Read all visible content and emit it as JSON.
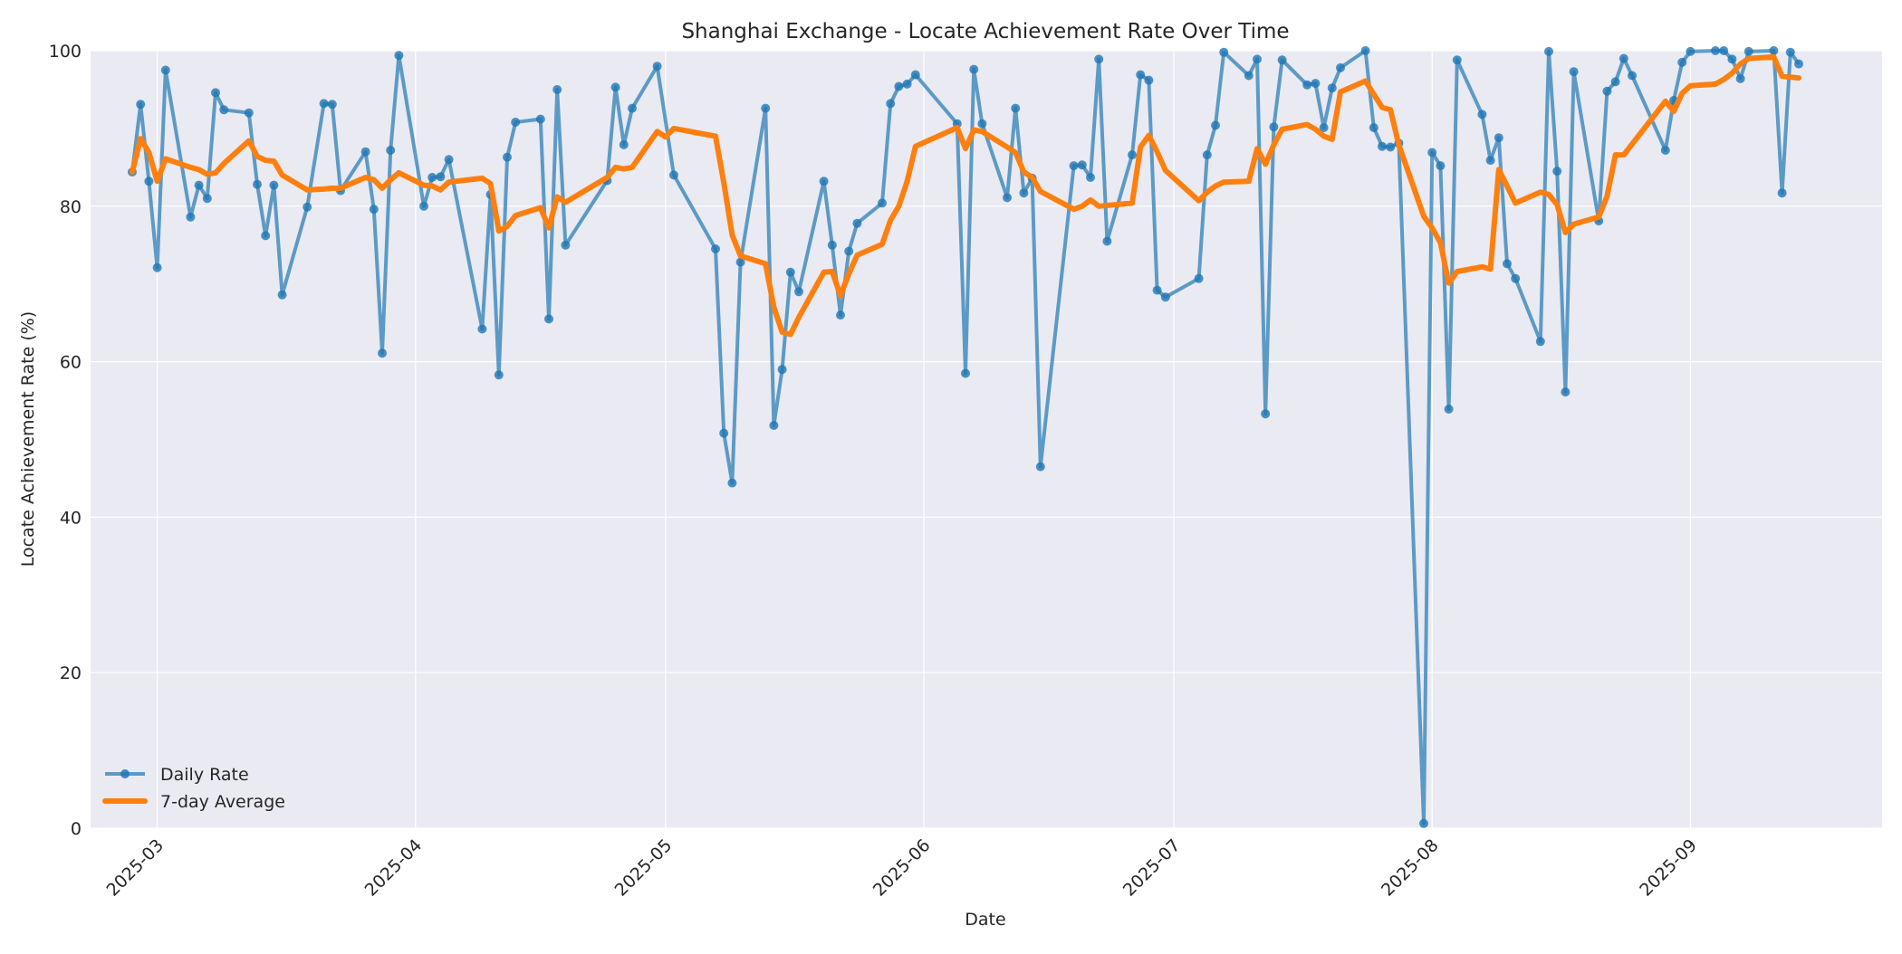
{
  "chart_data": {
    "type": "line",
    "title": "Shanghai Exchange - Locate Achievement Rate Over Time",
    "xlabel": "Date",
    "ylabel": "Locate Achievement Rate (%)",
    "ylim": [
      0,
      100
    ],
    "yticks": [
      0,
      20,
      40,
      60,
      80,
      100
    ],
    "xticks": [
      "2025-03",
      "2025-04",
      "2025-05",
      "2025-06",
      "2025-07",
      "2025-08",
      "2025-09"
    ],
    "xrange": [
      "2025-02-21",
      "2025-09-24"
    ],
    "grid": true,
    "legend_position": "lower left",
    "colors": {
      "daily": "#1f77b4",
      "avg": "#ff7f0e",
      "plot_bg": "#eaeaf2",
      "grid": "#ffffff"
    },
    "series": [
      {
        "name": "Daily Rate",
        "style": "line+marker",
        "points": [
          [
            "2025-02-26",
            84.4
          ],
          [
            "2025-02-27",
            93.1
          ],
          [
            "2025-02-28",
            83.2
          ],
          [
            "2025-03-01",
            72.1
          ],
          [
            "2025-03-02",
            97.5
          ],
          [
            "2025-03-05",
            78.6
          ],
          [
            "2025-03-06",
            82.7
          ],
          [
            "2025-03-07",
            81.0
          ],
          [
            "2025-03-08",
            94.6
          ],
          [
            "2025-03-09",
            92.4
          ],
          [
            "2025-03-12",
            92.0
          ],
          [
            "2025-03-13",
            82.8
          ],
          [
            "2025-03-14",
            76.2
          ],
          [
            "2025-03-15",
            82.7
          ],
          [
            "2025-03-16",
            68.6
          ],
          [
            "2025-03-19",
            79.9
          ],
          [
            "2025-03-21",
            93.2
          ],
          [
            "2025-03-22",
            93.1
          ],
          [
            "2025-03-23",
            82.0
          ],
          [
            "2025-03-26",
            87.0
          ],
          [
            "2025-03-27",
            79.6
          ],
          [
            "2025-03-28",
            61.1
          ],
          [
            "2025-03-29",
            87.2
          ],
          [
            "2025-03-30",
            99.4
          ],
          [
            "2025-04-02",
            80.0
          ],
          [
            "2025-04-03",
            83.7
          ],
          [
            "2025-04-04",
            83.8
          ],
          [
            "2025-04-05",
            86.0
          ],
          [
            "2025-04-09",
            64.2
          ],
          [
            "2025-04-10",
            81.5
          ],
          [
            "2025-04-11",
            58.3
          ],
          [
            "2025-04-12",
            86.3
          ],
          [
            "2025-04-13",
            90.8
          ],
          [
            "2025-04-16",
            91.2
          ],
          [
            "2025-04-17",
            65.5
          ],
          [
            "2025-04-18",
            95.0
          ],
          [
            "2025-04-19",
            75.0
          ],
          [
            "2025-04-24",
            83.3
          ],
          [
            "2025-04-25",
            95.3
          ],
          [
            "2025-04-26",
            87.9
          ],
          [
            "2025-04-27",
            92.6
          ],
          [
            "2025-04-30",
            98.0
          ],
          [
            "2025-05-02",
            84.0
          ],
          [
            "2025-05-07",
            74.5
          ],
          [
            "2025-05-08",
            50.8
          ],
          [
            "2025-05-09",
            44.4
          ],
          [
            "2025-05-10",
            72.8
          ],
          [
            "2025-05-13",
            92.6
          ],
          [
            "2025-05-14",
            51.8
          ],
          [
            "2025-05-15",
            59.0
          ],
          [
            "2025-05-16",
            71.5
          ],
          [
            "2025-05-17",
            69.0
          ],
          [
            "2025-05-20",
            83.2
          ],
          [
            "2025-05-21",
            75.0
          ],
          [
            "2025-05-22",
            66.0
          ],
          [
            "2025-05-23",
            74.2
          ],
          [
            "2025-05-24",
            77.8
          ],
          [
            "2025-05-27",
            80.4
          ],
          [
            "2025-05-28",
            93.2
          ],
          [
            "2025-05-29",
            95.4
          ],
          [
            "2025-05-30",
            95.7
          ],
          [
            "2025-05-31",
            96.9
          ],
          [
            "2025-06-05",
            90.6
          ],
          [
            "2025-06-06",
            58.5
          ],
          [
            "2025-06-07",
            97.6
          ],
          [
            "2025-06-08",
            90.6
          ],
          [
            "2025-06-11",
            81.1
          ],
          [
            "2025-06-12",
            92.6
          ],
          [
            "2025-06-13",
            81.7
          ],
          [
            "2025-06-14",
            83.6
          ],
          [
            "2025-06-15",
            46.5
          ],
          [
            "2025-06-19",
            85.2
          ],
          [
            "2025-06-20",
            85.3
          ],
          [
            "2025-06-21",
            83.7
          ],
          [
            "2025-06-22",
            98.9
          ],
          [
            "2025-06-23",
            75.5
          ],
          [
            "2025-06-26",
            86.6
          ],
          [
            "2025-06-27",
            96.9
          ],
          [
            "2025-06-28",
            96.2
          ],
          [
            "2025-06-29",
            69.2
          ],
          [
            "2025-06-30",
            68.3
          ],
          [
            "2025-07-04",
            70.7
          ],
          [
            "2025-07-05",
            86.6
          ],
          [
            "2025-07-06",
            90.4
          ],
          [
            "2025-07-07",
            99.8
          ],
          [
            "2025-07-10",
            96.8
          ],
          [
            "2025-07-11",
            98.9
          ],
          [
            "2025-07-12",
            53.3
          ],
          [
            "2025-07-13",
            90.2
          ],
          [
            "2025-07-14",
            98.8
          ],
          [
            "2025-07-17",
            95.6
          ],
          [
            "2025-07-18",
            95.8
          ],
          [
            "2025-07-19",
            90.1
          ],
          [
            "2025-07-20",
            95.2
          ],
          [
            "2025-07-21",
            97.8
          ],
          [
            "2025-07-24",
            100.0
          ],
          [
            "2025-07-25",
            90.1
          ],
          [
            "2025-07-26",
            87.7
          ],
          [
            "2025-07-27",
            87.6
          ],
          [
            "2025-07-28",
            88.1
          ],
          [
            "2025-07-31",
            0.6
          ],
          [
            "2025-08-01",
            86.9
          ],
          [
            "2025-08-02",
            85.2
          ],
          [
            "2025-08-03",
            53.9
          ],
          [
            "2025-08-04",
            98.8
          ],
          [
            "2025-08-07",
            91.8
          ],
          [
            "2025-08-08",
            85.9
          ],
          [
            "2025-08-09",
            88.8
          ],
          [
            "2025-08-10",
            72.6
          ],
          [
            "2025-08-11",
            70.7
          ],
          [
            "2025-08-14",
            62.6
          ],
          [
            "2025-08-15",
            99.9
          ],
          [
            "2025-08-16",
            84.5
          ],
          [
            "2025-08-17",
            56.1
          ],
          [
            "2025-08-18",
            97.3
          ],
          [
            "2025-08-21",
            78.1
          ],
          [
            "2025-08-22",
            94.8
          ],
          [
            "2025-08-23",
            96.0
          ],
          [
            "2025-08-24",
            99.0
          ],
          [
            "2025-08-25",
            96.8
          ],
          [
            "2025-08-29",
            87.2
          ],
          [
            "2025-08-30",
            93.6
          ],
          [
            "2025-08-31",
            98.5
          ],
          [
            "2025-09-01",
            99.9
          ],
          [
            "2025-09-04",
            100.0
          ],
          [
            "2025-09-05",
            100.0
          ],
          [
            "2025-09-06",
            98.9
          ],
          [
            "2025-09-07",
            96.4
          ],
          [
            "2025-09-08",
            99.9
          ],
          [
            "2025-09-11",
            100.0
          ],
          [
            "2025-09-12",
            81.7
          ],
          [
            "2025-09-13",
            99.8
          ],
          [
            "2025-09-14",
            98.3
          ]
        ]
      },
      {
        "name": "7-day Average",
        "style": "line",
        "points": [
          [
            "2025-02-26",
            84.4
          ],
          [
            "2025-02-27",
            88.7
          ],
          [
            "2025-02-28",
            86.9
          ],
          [
            "2025-03-01",
            83.2
          ],
          [
            "2025-03-02",
            86.1
          ],
          [
            "2025-03-05",
            85.0
          ],
          [
            "2025-03-06",
            84.7
          ],
          [
            "2025-03-07",
            84.1
          ],
          [
            "2025-03-08",
            84.3
          ],
          [
            "2025-03-09",
            85.5
          ],
          [
            "2025-03-12",
            88.4
          ],
          [
            "2025-03-13",
            86.4
          ],
          [
            "2025-03-14",
            85.9
          ],
          [
            "2025-03-15",
            85.8
          ],
          [
            "2025-03-16",
            84.0
          ],
          [
            "2025-03-19",
            82.1
          ],
          [
            "2025-03-21",
            82.2
          ],
          [
            "2025-03-22",
            82.3
          ],
          [
            "2025-03-23",
            82.3
          ],
          [
            "2025-03-26",
            83.7
          ],
          [
            "2025-03-27",
            83.4
          ],
          [
            "2025-03-28",
            82.3
          ],
          [
            "2025-03-29",
            83.4
          ],
          [
            "2025-03-30",
            84.3
          ],
          [
            "2025-04-02",
            82.7
          ],
          [
            "2025-04-03",
            82.6
          ],
          [
            "2025-04-04",
            82.1
          ],
          [
            "2025-04-05",
            83.1
          ],
          [
            "2025-04-09",
            83.6
          ],
          [
            "2025-04-10",
            82.9
          ],
          [
            "2025-04-11",
            76.8
          ],
          [
            "2025-04-12",
            77.4
          ],
          [
            "2025-04-13",
            78.8
          ],
          [
            "2025-04-16",
            79.8
          ],
          [
            "2025-04-17",
            77.2
          ],
          [
            "2025-04-18",
            81.2
          ],
          [
            "2025-04-19",
            80.5
          ],
          [
            "2025-04-24",
            83.7
          ],
          [
            "2025-04-25",
            85.0
          ],
          [
            "2025-04-26",
            84.8
          ],
          [
            "2025-04-27",
            85.0
          ],
          [
            "2025-04-30",
            89.6
          ],
          [
            "2025-05-01",
            88.9
          ],
          [
            "2025-05-02",
            90.0
          ],
          [
            "2025-05-07",
            89.0
          ],
          [
            "2025-05-08",
            83.0
          ],
          [
            "2025-05-09",
            76.3
          ],
          [
            "2025-05-10",
            73.6
          ],
          [
            "2025-05-13",
            72.6
          ],
          [
            "2025-05-14",
            67.0
          ],
          [
            "2025-05-15",
            63.8
          ],
          [
            "2025-05-16",
            63.5
          ],
          [
            "2025-05-17",
            65.7
          ],
          [
            "2025-05-20",
            71.5
          ],
          [
            "2025-05-21",
            71.6
          ],
          [
            "2025-05-22",
            68.5
          ],
          [
            "2025-05-23",
            71.3
          ],
          [
            "2025-05-24",
            73.7
          ],
          [
            "2025-05-27",
            75.1
          ],
          [
            "2025-05-28",
            78.2
          ],
          [
            "2025-05-29",
            80.0
          ],
          [
            "2025-05-30",
            83.2
          ],
          [
            "2025-05-31",
            87.7
          ],
          [
            "2025-06-05",
            90.1
          ],
          [
            "2025-06-06",
            87.4
          ],
          [
            "2025-06-07",
            89.8
          ],
          [
            "2025-06-08",
            89.6
          ],
          [
            "2025-06-11",
            87.6
          ],
          [
            "2025-06-12",
            86.9
          ],
          [
            "2025-06-13",
            84.4
          ],
          [
            "2025-06-14",
            83.7
          ],
          [
            "2025-06-15",
            81.9
          ],
          [
            "2025-06-19",
            79.6
          ],
          [
            "2025-06-20",
            80.0
          ],
          [
            "2025-06-21",
            80.8
          ],
          [
            "2025-06-22",
            80.0
          ],
          [
            "2025-06-26",
            80.4
          ],
          [
            "2025-06-27",
            87.6
          ],
          [
            "2025-06-28",
            89.1
          ],
          [
            "2025-06-29",
            87.0
          ],
          [
            "2025-06-30",
            84.6
          ],
          [
            "2025-07-04",
            80.7
          ],
          [
            "2025-07-05",
            81.8
          ],
          [
            "2025-07-06",
            82.6
          ],
          [
            "2025-07-07",
            83.1
          ],
          [
            "2025-07-10",
            83.2
          ],
          [
            "2025-07-11",
            87.4
          ],
          [
            "2025-07-12",
            85.4
          ],
          [
            "2025-07-13",
            87.9
          ],
          [
            "2025-07-14",
            89.9
          ],
          [
            "2025-07-17",
            90.5
          ],
          [
            "2025-07-18",
            89.9
          ],
          [
            "2025-07-19",
            89.0
          ],
          [
            "2025-07-20",
            88.6
          ],
          [
            "2025-07-21",
            94.7
          ],
          [
            "2025-07-24",
            96.1
          ],
          [
            "2025-07-25",
            94.4
          ],
          [
            "2025-07-26",
            92.7
          ],
          [
            "2025-07-27",
            92.4
          ],
          [
            "2025-07-28",
            87.9
          ],
          [
            "2025-07-31",
            78.7
          ],
          [
            "2025-08-01",
            77.2
          ],
          [
            "2025-08-02",
            75.3
          ],
          [
            "2025-08-03",
            70.1
          ],
          [
            "2025-08-04",
            71.6
          ],
          [
            "2025-08-07",
            72.2
          ],
          [
            "2025-08-08",
            71.9
          ],
          [
            "2025-08-09",
            84.7
          ],
          [
            "2025-08-10",
            82.6
          ],
          [
            "2025-08-11",
            80.4
          ],
          [
            "2025-08-14",
            81.8
          ],
          [
            "2025-08-15",
            81.5
          ],
          [
            "2025-08-16",
            80.2
          ],
          [
            "2025-08-17",
            76.6
          ],
          [
            "2025-08-18",
            77.7
          ],
          [
            "2025-08-21",
            78.6
          ],
          [
            "2025-08-22",
            81.3
          ],
          [
            "2025-08-23",
            86.6
          ],
          [
            "2025-08-24",
            86.6
          ],
          [
            "2025-08-29",
            93.5
          ],
          [
            "2025-08-30",
            92.2
          ],
          [
            "2025-08-31",
            94.5
          ],
          [
            "2025-09-01",
            95.5
          ],
          [
            "2025-09-04",
            95.7
          ],
          [
            "2025-09-05",
            96.3
          ],
          [
            "2025-09-06",
            97.1
          ],
          [
            "2025-09-07",
            98.3
          ],
          [
            "2025-09-08",
            99.0
          ],
          [
            "2025-09-11",
            99.2
          ],
          [
            "2025-09-12",
            96.7
          ],
          [
            "2025-09-14",
            96.5
          ]
        ]
      }
    ]
  },
  "legend": {
    "items": [
      {
        "label": "Daily Rate"
      },
      {
        "label": "7-day Average"
      }
    ]
  }
}
